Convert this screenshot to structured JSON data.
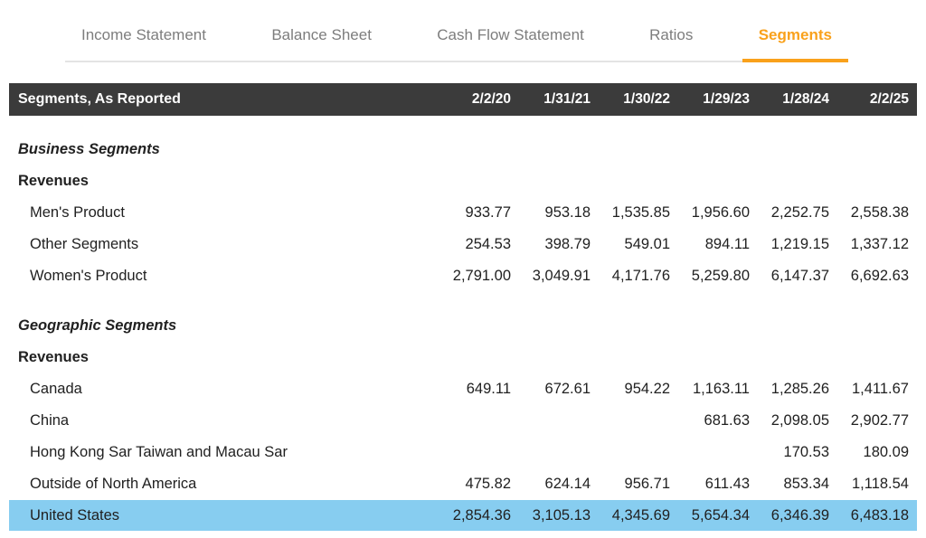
{
  "tabs": [
    {
      "label": "Income Statement",
      "active": false
    },
    {
      "label": "Balance Sheet",
      "active": false
    },
    {
      "label": "Cash Flow Statement",
      "active": false
    },
    {
      "label": "Ratios",
      "active": false
    },
    {
      "label": "Segments",
      "active": true
    }
  ],
  "table": {
    "title": "Segments, As Reported",
    "columns": [
      "2/2/20",
      "1/31/21",
      "1/30/22",
      "1/29/23",
      "1/28/24",
      "2/2/25"
    ],
    "sections": [
      {
        "name": "Business Segments",
        "subheader": "Revenues",
        "rows": [
          {
            "label": "Men's Product",
            "highlighted": false,
            "values": [
              "933.77",
              "953.18",
              "1,535.85",
              "1,956.60",
              "2,252.75",
              "2,558.38"
            ]
          },
          {
            "label": "Other Segments",
            "highlighted": false,
            "values": [
              "254.53",
              "398.79",
              "549.01",
              "894.11",
              "1,219.15",
              "1,337.12"
            ]
          },
          {
            "label": "Women's Product",
            "highlighted": false,
            "values": [
              "2,791.00",
              "3,049.91",
              "4,171.76",
              "5,259.80",
              "6,147.37",
              "6,692.63"
            ]
          }
        ]
      },
      {
        "name": "Geographic Segments",
        "subheader": "Revenues",
        "rows": [
          {
            "label": "Canada",
            "highlighted": false,
            "values": [
              "649.11",
              "672.61",
              "954.22",
              "1,163.11",
              "1,285.26",
              "1,411.67"
            ]
          },
          {
            "label": "China",
            "highlighted": false,
            "values": [
              "",
              "",
              "",
              "681.63",
              "2,098.05",
              "2,902.77"
            ]
          },
          {
            "label": "Hong Kong Sar Taiwan and Macau Sar",
            "highlighted": false,
            "values": [
              "",
              "",
              "",
              "",
              "170.53",
              "180.09"
            ]
          },
          {
            "label": "Outside of North America",
            "highlighted": false,
            "values": [
              "475.82",
              "624.14",
              "956.71",
              "611.43",
              "853.34",
              "1,118.54"
            ]
          },
          {
            "label": "United States",
            "highlighted": true,
            "values": [
              "2,854.36",
              "3,105.13",
              "4,345.69",
              "5,654.34",
              "6,346.39",
              "6,483.18"
            ]
          }
        ]
      }
    ]
  },
  "colors": {
    "accent_orange": "#F9A11B",
    "header_bar_bg": "#3B3B3B",
    "highlight_blue": "#87CDF0",
    "tab_inactive_gray": "#7D7D7D",
    "text_dark": "#212121",
    "divider_gray": "#E4E4E4",
    "header_bar_text": "#FFFFFF"
  }
}
